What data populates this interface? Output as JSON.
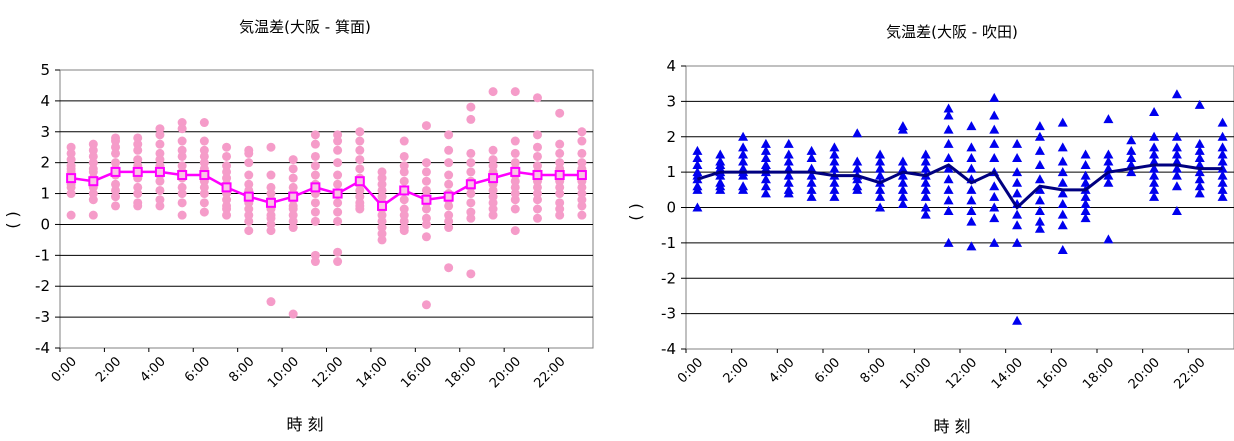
{
  "chart_data": [
    {
      "type": "scatter",
      "title": "気温差(大阪 - 箕面)",
      "xlabel": "時 刻",
      "ylabel": "( )",
      "ylim": [
        -4,
        5
      ],
      "yticks": [
        "5",
        "4",
        "3",
        "2",
        "1",
        "0",
        "-1",
        "-2",
        "-3",
        "-4"
      ],
      "x_tick_labels": [
        "0:00",
        "2:00",
        "4:00",
        "6:00",
        "8:00",
        "10:00",
        "12:00",
        "14:00",
        "16:00",
        "18:00",
        "20:00",
        "22:00"
      ],
      "grid": true,
      "colors": {
        "points": "#f59cc9",
        "mean_line": "#ff00ff"
      },
      "series": [
        {
          "kind": "scatter",
          "x": [
            0,
            1,
            2,
            3,
            4,
            5,
            6,
            7,
            8,
            9,
            10,
            11,
            12,
            13,
            14,
            15,
            16,
            17,
            18,
            19,
            20,
            21,
            22,
            23
          ],
          "points": [
            [
              2.5,
              2.3,
              2.1,
              1.9,
              1.8,
              1.7,
              1.6,
              1.5,
              1.3,
              1.2,
              1.0,
              0.3
            ],
            [
              2.6,
              2.4,
              2.2,
              2.0,
              1.8,
              1.7,
              1.5,
              1.4,
              1.2,
              1.0,
              0.8,
              0.3
            ],
            [
              2.8,
              2.7,
              2.5,
              2.3,
              2.0,
              1.8,
              1.7,
              1.6,
              1.3,
              1.1,
              0.9,
              0.6
            ],
            [
              2.8,
              2.6,
              2.4,
              2.1,
              1.9,
              1.8,
              1.7,
              1.5,
              1.2,
              1.0,
              0.7,
              0.6
            ],
            [
              3.1,
              2.9,
              2.6,
              2.3,
              2.1,
              1.9,
              1.7,
              1.6,
              1.4,
              1.1,
              0.8,
              0.6
            ],
            [
              3.3,
              3.1,
              2.7,
              2.4,
              2.2,
              1.9,
              1.7,
              1.5,
              1.2,
              1.0,
              0.7,
              0.3
            ],
            [
              3.3,
              2.7,
              2.4,
              2.2,
              2.0,
              1.8,
              1.6,
              1.4,
              1.2,
              1.0,
              0.7,
              0.4
            ],
            [
              2.5,
              2.2,
              1.9,
              1.7,
              1.5,
              1.3,
              1.2,
              1.0,
              0.8,
              0.6,
              0.5,
              0.3
            ],
            [
              2.4,
              2.3,
              2.0,
              1.6,
              1.3,
              1.1,
              0.9,
              0.7,
              0.5,
              0.3,
              0.1,
              -0.2
            ],
            [
              2.5,
              1.6,
              1.2,
              1.0,
              0.8,
              0.6,
              0.5,
              0.3,
              0.2,
              0.0,
              -0.2,
              -2.5
            ],
            [
              2.1,
              1.8,
              1.5,
              1.2,
              1.0,
              0.8,
              0.6,
              0.5,
              0.3,
              0.1,
              -0.1,
              -2.9
            ],
            [
              2.9,
              2.6,
              2.2,
              1.9,
              1.6,
              1.3,
              1.0,
              0.7,
              0.4,
              0.1,
              -1.0,
              -1.2
            ],
            [
              2.9,
              2.7,
              2.4,
              2.0,
              1.6,
              1.3,
              1.0,
              0.7,
              0.4,
              0.1,
              -0.9,
              -1.2
            ],
            [
              3.0,
              2.7,
              2.4,
              2.1,
              1.8,
              1.5,
              1.3,
              1.1,
              0.9,
              0.7,
              0.6,
              0.5
            ],
            [
              1.7,
              1.5,
              1.3,
              1.1,
              0.9,
              0.7,
              0.5,
              0.3,
              0.1,
              -0.1,
              -0.3,
              -0.5
            ],
            [
              2.7,
              2.2,
              1.9,
              1.7,
              1.4,
              1.1,
              0.8,
              0.5,
              0.3,
              0.1,
              -0.1,
              -0.2
            ],
            [
              3.2,
              2.0,
              1.7,
              1.4,
              1.1,
              0.9,
              0.7,
              0.5,
              0.2,
              0.0,
              -0.4,
              -2.6
            ],
            [
              2.9,
              2.4,
              2.0,
              1.6,
              1.3,
              1.0,
              0.8,
              0.6,
              0.3,
              0.1,
              -0.1,
              -1.4
            ],
            [
              3.8,
              3.4,
              2.3,
              2.0,
              1.7,
              1.4,
              1.2,
              1.0,
              0.7,
              0.4,
              0.2,
              -1.6
            ],
            [
              4.3,
              2.4,
              2.1,
              1.9,
              1.7,
              1.5,
              1.3,
              1.1,
              0.9,
              0.7,
              0.5,
              0.3
            ],
            [
              4.3,
              2.7,
              2.3,
              2.0,
              1.8,
              1.6,
              1.4,
              1.2,
              1.0,
              0.8,
              0.5,
              -0.2
            ],
            [
              4.1,
              2.9,
              2.5,
              2.2,
              1.9,
              1.7,
              1.4,
              1.2,
              1.0,
              0.8,
              0.5,
              0.2
            ],
            [
              3.6,
              2.6,
              2.3,
              2.0,
              1.8,
              1.6,
              1.4,
              1.2,
              1.0,
              0.7,
              0.5,
              0.3
            ],
            [
              3.0,
              2.7,
              2.3,
              2.0,
              1.8,
              1.6,
              1.4,
              1.2,
              1.0,
              0.8,
              0.6,
              0.3
            ]
          ]
        },
        {
          "kind": "mean_line",
          "x": [
            0,
            1,
            2,
            3,
            4,
            5,
            6,
            7,
            8,
            9,
            10,
            11,
            12,
            13,
            14,
            15,
            16,
            17,
            18,
            19,
            20,
            21,
            22,
            23
          ],
          "values": [
            1.5,
            1.4,
            1.7,
            1.7,
            1.7,
            1.6,
            1.6,
            1.2,
            0.9,
            0.7,
            0.9,
            1.2,
            1.0,
            1.4,
            0.6,
            1.1,
            0.8,
            0.9,
            1.3,
            1.5,
            1.7,
            1.6,
            1.6,
            1.6
          ]
        }
      ]
    },
    {
      "type": "scatter",
      "title": "気温差(大阪 - 吹田)",
      "xlabel": "時 刻",
      "ylabel": "( )",
      "ylim": [
        -4,
        4
      ],
      "yticks": [
        "4",
        "3",
        "2",
        "1",
        "0",
        "-1",
        "-2",
        "-3",
        "-4"
      ],
      "x_tick_labels": [
        "0:00",
        "2:00",
        "4:00",
        "6:00",
        "8:00",
        "10:00",
        "12:00",
        "14:00",
        "16:00",
        "18:00",
        "20:00",
        "22:00"
      ],
      "grid": true,
      "colors": {
        "points": "#0000ee",
        "mean_line": "#000080"
      },
      "series": [
        {
          "kind": "scatter",
          "x": [
            0,
            1,
            2,
            3,
            4,
            5,
            6,
            7,
            8,
            9,
            10,
            11,
            12,
            13,
            14,
            15,
            16,
            17,
            18,
            19,
            20,
            21,
            22,
            23
          ],
          "points": [
            [
              1.6,
              1.4,
              1.2,
              1.0,
              0.9,
              0.8,
              0.6,
              0.5,
              0.0
            ],
            [
              1.5,
              1.3,
              1.2,
              1.1,
              1.0,
              0.9,
              0.7,
              0.6,
              0.5
            ],
            [
              2.0,
              1.7,
              1.5,
              1.3,
              1.1,
              1.0,
              0.9,
              0.6,
              0.5
            ],
            [
              1.8,
              1.6,
              1.4,
              1.2,
              1.1,
              1.0,
              0.8,
              0.6,
              0.4
            ],
            [
              1.8,
              1.5,
              1.3,
              1.1,
              0.9,
              0.7,
              0.5,
              0.4
            ],
            [
              1.6,
              1.4,
              1.1,
              0.9,
              0.7,
              0.5,
              0.3
            ],
            [
              1.7,
              1.5,
              1.3,
              1.1,
              0.9,
              0.7,
              0.5,
              0.3
            ],
            [
              2.1,
              1.3,
              1.1,
              0.9,
              0.8,
              0.6,
              0.5
            ],
            [
              1.5,
              1.3,
              1.1,
              0.9,
              0.7,
              0.5,
              0.3,
              0.0
            ],
            [
              2.3,
              2.2,
              1.3,
              1.1,
              0.9,
              0.7,
              0.5,
              0.3,
              0.1
            ],
            [
              1.5,
              1.3,
              1.1,
              0.9,
              0.7,
              0.5,
              0.3,
              0.0,
              -0.2
            ],
            [
              2.8,
              2.6,
              2.2,
              1.8,
              1.4,
              1.1,
              0.8,
              0.5,
              0.2,
              -0.1,
              -1.0
            ],
            [
              2.3,
              1.7,
              1.4,
              1.1,
              0.8,
              0.5,
              0.2,
              -0.1,
              -0.4,
              -1.1
            ],
            [
              3.1,
              2.6,
              2.2,
              1.8,
              1.4,
              1.0,
              0.6,
              0.3,
              0.0,
              -0.3,
              -1.0
            ],
            [
              1.8,
              1.4,
              1.0,
              0.7,
              0.4,
              0.1,
              -0.2,
              -0.5,
              -1.0,
              -3.2
            ],
            [
              2.3,
              2.0,
              1.6,
              1.2,
              0.8,
              0.5,
              0.2,
              -0.1,
              -0.4,
              -0.6
            ],
            [
              2.4,
              1.7,
              1.3,
              1.0,
              0.7,
              0.4,
              0.1,
              -0.2,
              -0.5,
              -1.2
            ],
            [
              1.5,
              1.2,
              0.9,
              0.7,
              0.5,
              0.3,
              0.1,
              -0.1,
              -0.3
            ],
            [
              2.5,
              1.5,
              1.3,
              1.1,
              0.9,
              0.7,
              -0.9
            ],
            [
              1.9,
              1.6,
              1.4,
              1.2,
              1.0
            ],
            [
              2.7,
              2.0,
              1.7,
              1.5,
              1.3,
              1.1,
              0.9,
              0.7,
              0.5,
              0.3
            ],
            [
              3.2,
              2.0,
              1.7,
              1.5,
              1.3,
              1.1,
              0.9,
              0.6,
              -0.1
            ],
            [
              2.9,
              1.8,
              1.6,
              1.4,
              1.2,
              1.0,
              0.8,
              0.6,
              0.4
            ],
            [
              2.4,
              2.0,
              1.7,
              1.5,
              1.3,
              1.1,
              0.9,
              0.7,
              0.5,
              0.3
            ]
          ]
        },
        {
          "kind": "mean_line",
          "x": [
            0,
            1,
            2,
            3,
            4,
            5,
            6,
            7,
            8,
            9,
            10,
            11,
            12,
            13,
            14,
            15,
            16,
            17,
            18,
            19,
            20,
            21,
            22,
            23
          ],
          "values": [
            0.8,
            1.0,
            1.0,
            1.0,
            1.0,
            1.0,
            0.9,
            0.9,
            0.7,
            1.0,
            0.9,
            1.2,
            0.7,
            1.0,
            0.0,
            0.6,
            0.5,
            0.5,
            1.0,
            1.1,
            1.2,
            1.2,
            1.1,
            1.1
          ]
        }
      ]
    }
  ]
}
